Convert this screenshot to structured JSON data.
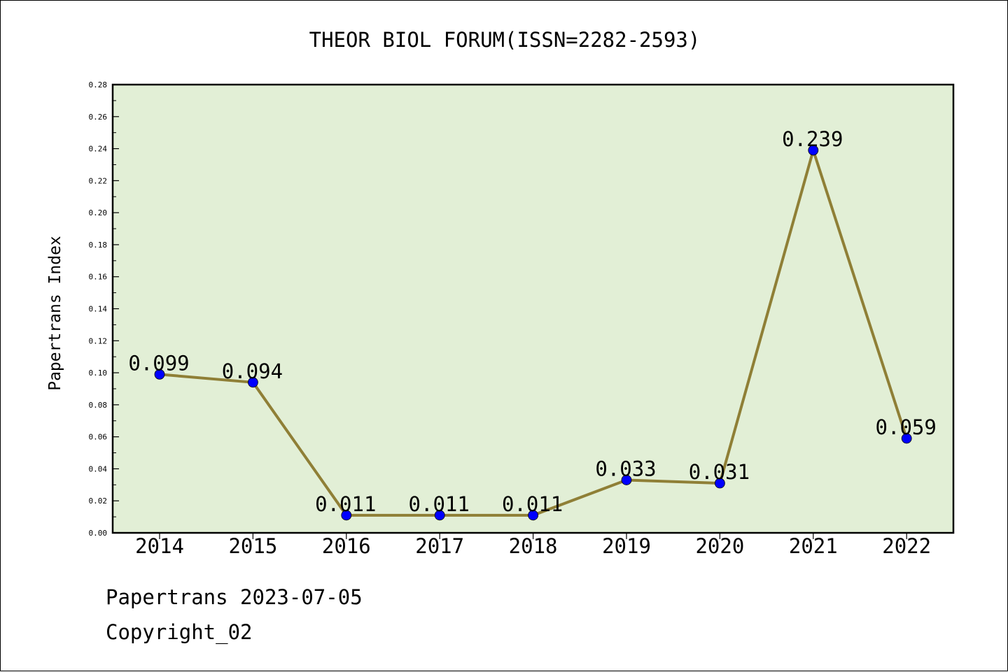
{
  "chart_data": {
    "type": "line",
    "title": "THEOR BIOL FORUM(ISSN=2282-2593)",
    "xlabel": "",
    "ylabel": "Papertrans Index",
    "categories": [
      "2014",
      "2015",
      "2016",
      "2017",
      "2018",
      "2019",
      "2020",
      "2021",
      "2022"
    ],
    "series": [
      {
        "values": [
          0.099,
          0.094,
          0.011,
          0.011,
          0.011,
          0.033,
          0.031,
          0.239,
          0.059
        ],
        "labels": [
          "0.099",
          "0.094",
          "0.011",
          "0.011",
          "0.011",
          "0.033",
          "0.031",
          "0.239",
          "0.059"
        ],
        "line_color": "#8f7f36",
        "marker_color": "#0000ff"
      }
    ],
    "ylim": [
      0,
      0.28
    ],
    "yticks": [
      "0.00",
      "0.02",
      "0.04",
      "0.06",
      "0.08",
      "0.10",
      "0.12",
      "0.14",
      "0.16",
      "0.18",
      "0.20",
      "0.22",
      "0.24",
      "0.26",
      "0.28"
    ],
    "plot_background": "#e2efd6",
    "grid": false,
    "legend": "none"
  },
  "footer": {
    "line1": "Papertrans 2023-07-05",
    "line2": "Copyright_02"
  }
}
